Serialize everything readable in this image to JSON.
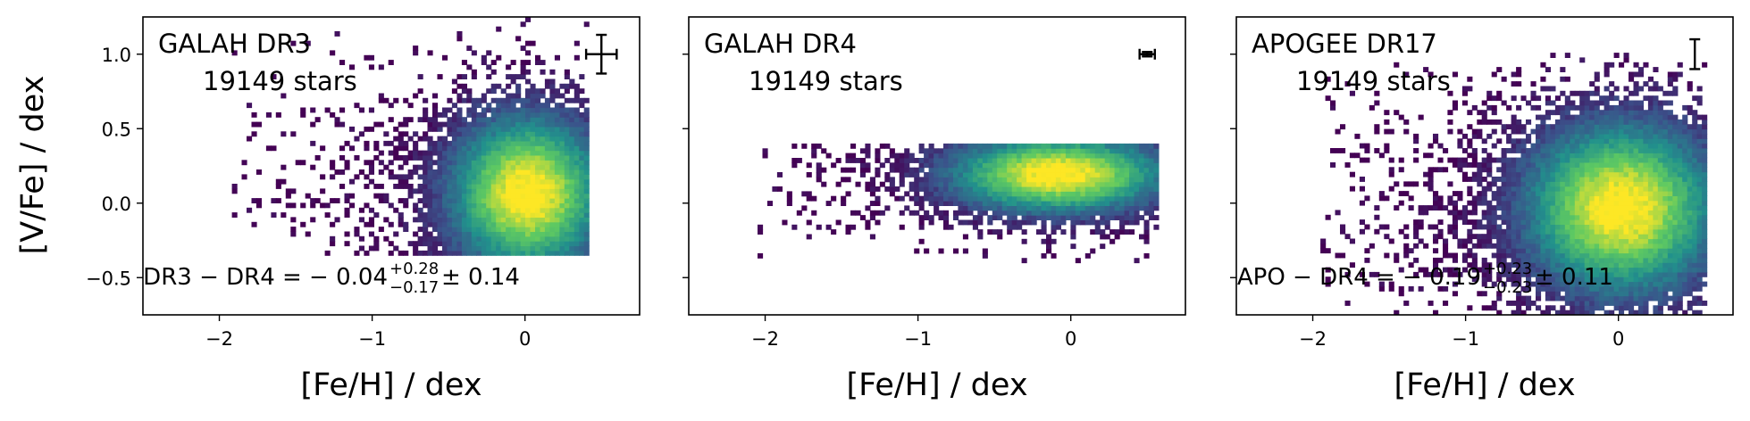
{
  "figure": {
    "ylabel": "[V/Fe] / dex",
    "colormap": [
      "#440154",
      "#3b528b",
      "#21918c",
      "#5ec962",
      "#fde725"
    ]
  },
  "chart_data": [
    {
      "type": "heatmap",
      "title": "GALAH DR3",
      "subtitle": "19149 stars",
      "xlabel": "[Fe/H] / dex",
      "ylabel": "[V/Fe] / dex",
      "xlim": [
        -2.5,
        0.75
      ],
      "ylim": [
        -0.75,
        1.25
      ],
      "xticks": [
        -2,
        -1,
        0
      ],
      "xtick_labels": [
        "−2",
        "−1",
        "0"
      ],
      "yticks": [
        -0.5,
        0.0,
        0.5,
        1.0
      ],
      "ytick_labels": [
        "−0.5",
        "0.0",
        "0.5",
        "1.0"
      ],
      "grid": false,
      "density_peak": [
        0.0,
        0.05
      ],
      "density_extent": {
        "x": [
          -1.95,
          0.4
        ],
        "y": [
          -0.35,
          1.25
        ]
      },
      "errorbar": {
        "x": 0.5,
        "y": 1.0,
        "xerr": 0.1,
        "yerr": 0.13
      },
      "annotation": {
        "lhs": "DR3 − DR4 = − 0.04",
        "sup": "+0.28",
        "sub": "−0.17",
        "rhs": "± 0.14"
      }
    },
    {
      "type": "heatmap",
      "title": "GALAH DR4",
      "subtitle": "19149 stars",
      "xlabel": "[Fe/H] / dex",
      "ylabel": "",
      "xlim": [
        -2.5,
        0.75
      ],
      "ylim": [
        -0.75,
        1.25
      ],
      "xticks": [
        -2,
        -1,
        0
      ],
      "xtick_labels": [
        "−2",
        "−1",
        "0"
      ],
      "yticks": [
        -0.5,
        0.0,
        0.5,
        1.0
      ],
      "ytick_labels": [],
      "grid": false,
      "density_peak": [
        -0.1,
        0.18
      ],
      "density_extent": {
        "x": [
          -2.05,
          0.55
        ],
        "y": [
          -0.4,
          0.4
        ]
      },
      "errorbar": {
        "x": 0.5,
        "y": 1.0,
        "xerr": 0.05,
        "yerr": 0.015
      },
      "annotation": null
    },
    {
      "type": "heatmap",
      "title": "APOGEE DR17",
      "subtitle": "19149 stars",
      "xlabel": "[Fe/H] / dex",
      "ylabel": "",
      "xlim": [
        -2.5,
        0.75
      ],
      "ylim": [
        -0.75,
        1.25
      ],
      "xticks": [
        -2,
        -1,
        0
      ],
      "xtick_labels": [
        "−2",
        "−1",
        "0"
      ],
      "yticks": [
        -0.5,
        0.0,
        0.5,
        1.0
      ],
      "ytick_labels": [],
      "grid": false,
      "density_peak": [
        0.0,
        -0.05
      ],
      "density_extent": {
        "x": [
          -1.95,
          0.55
        ],
        "y": [
          -0.75,
          1.0
        ]
      },
      "errorbar": {
        "x": 0.5,
        "y": 1.0,
        "xerr": 0.0,
        "yerr": 0.1
      },
      "annotation": {
        "lhs": "APO − DR4 = − 0.19",
        "sup": "+0.23",
        "sub": "−0.23",
        "rhs": "± 0.11"
      }
    }
  ]
}
